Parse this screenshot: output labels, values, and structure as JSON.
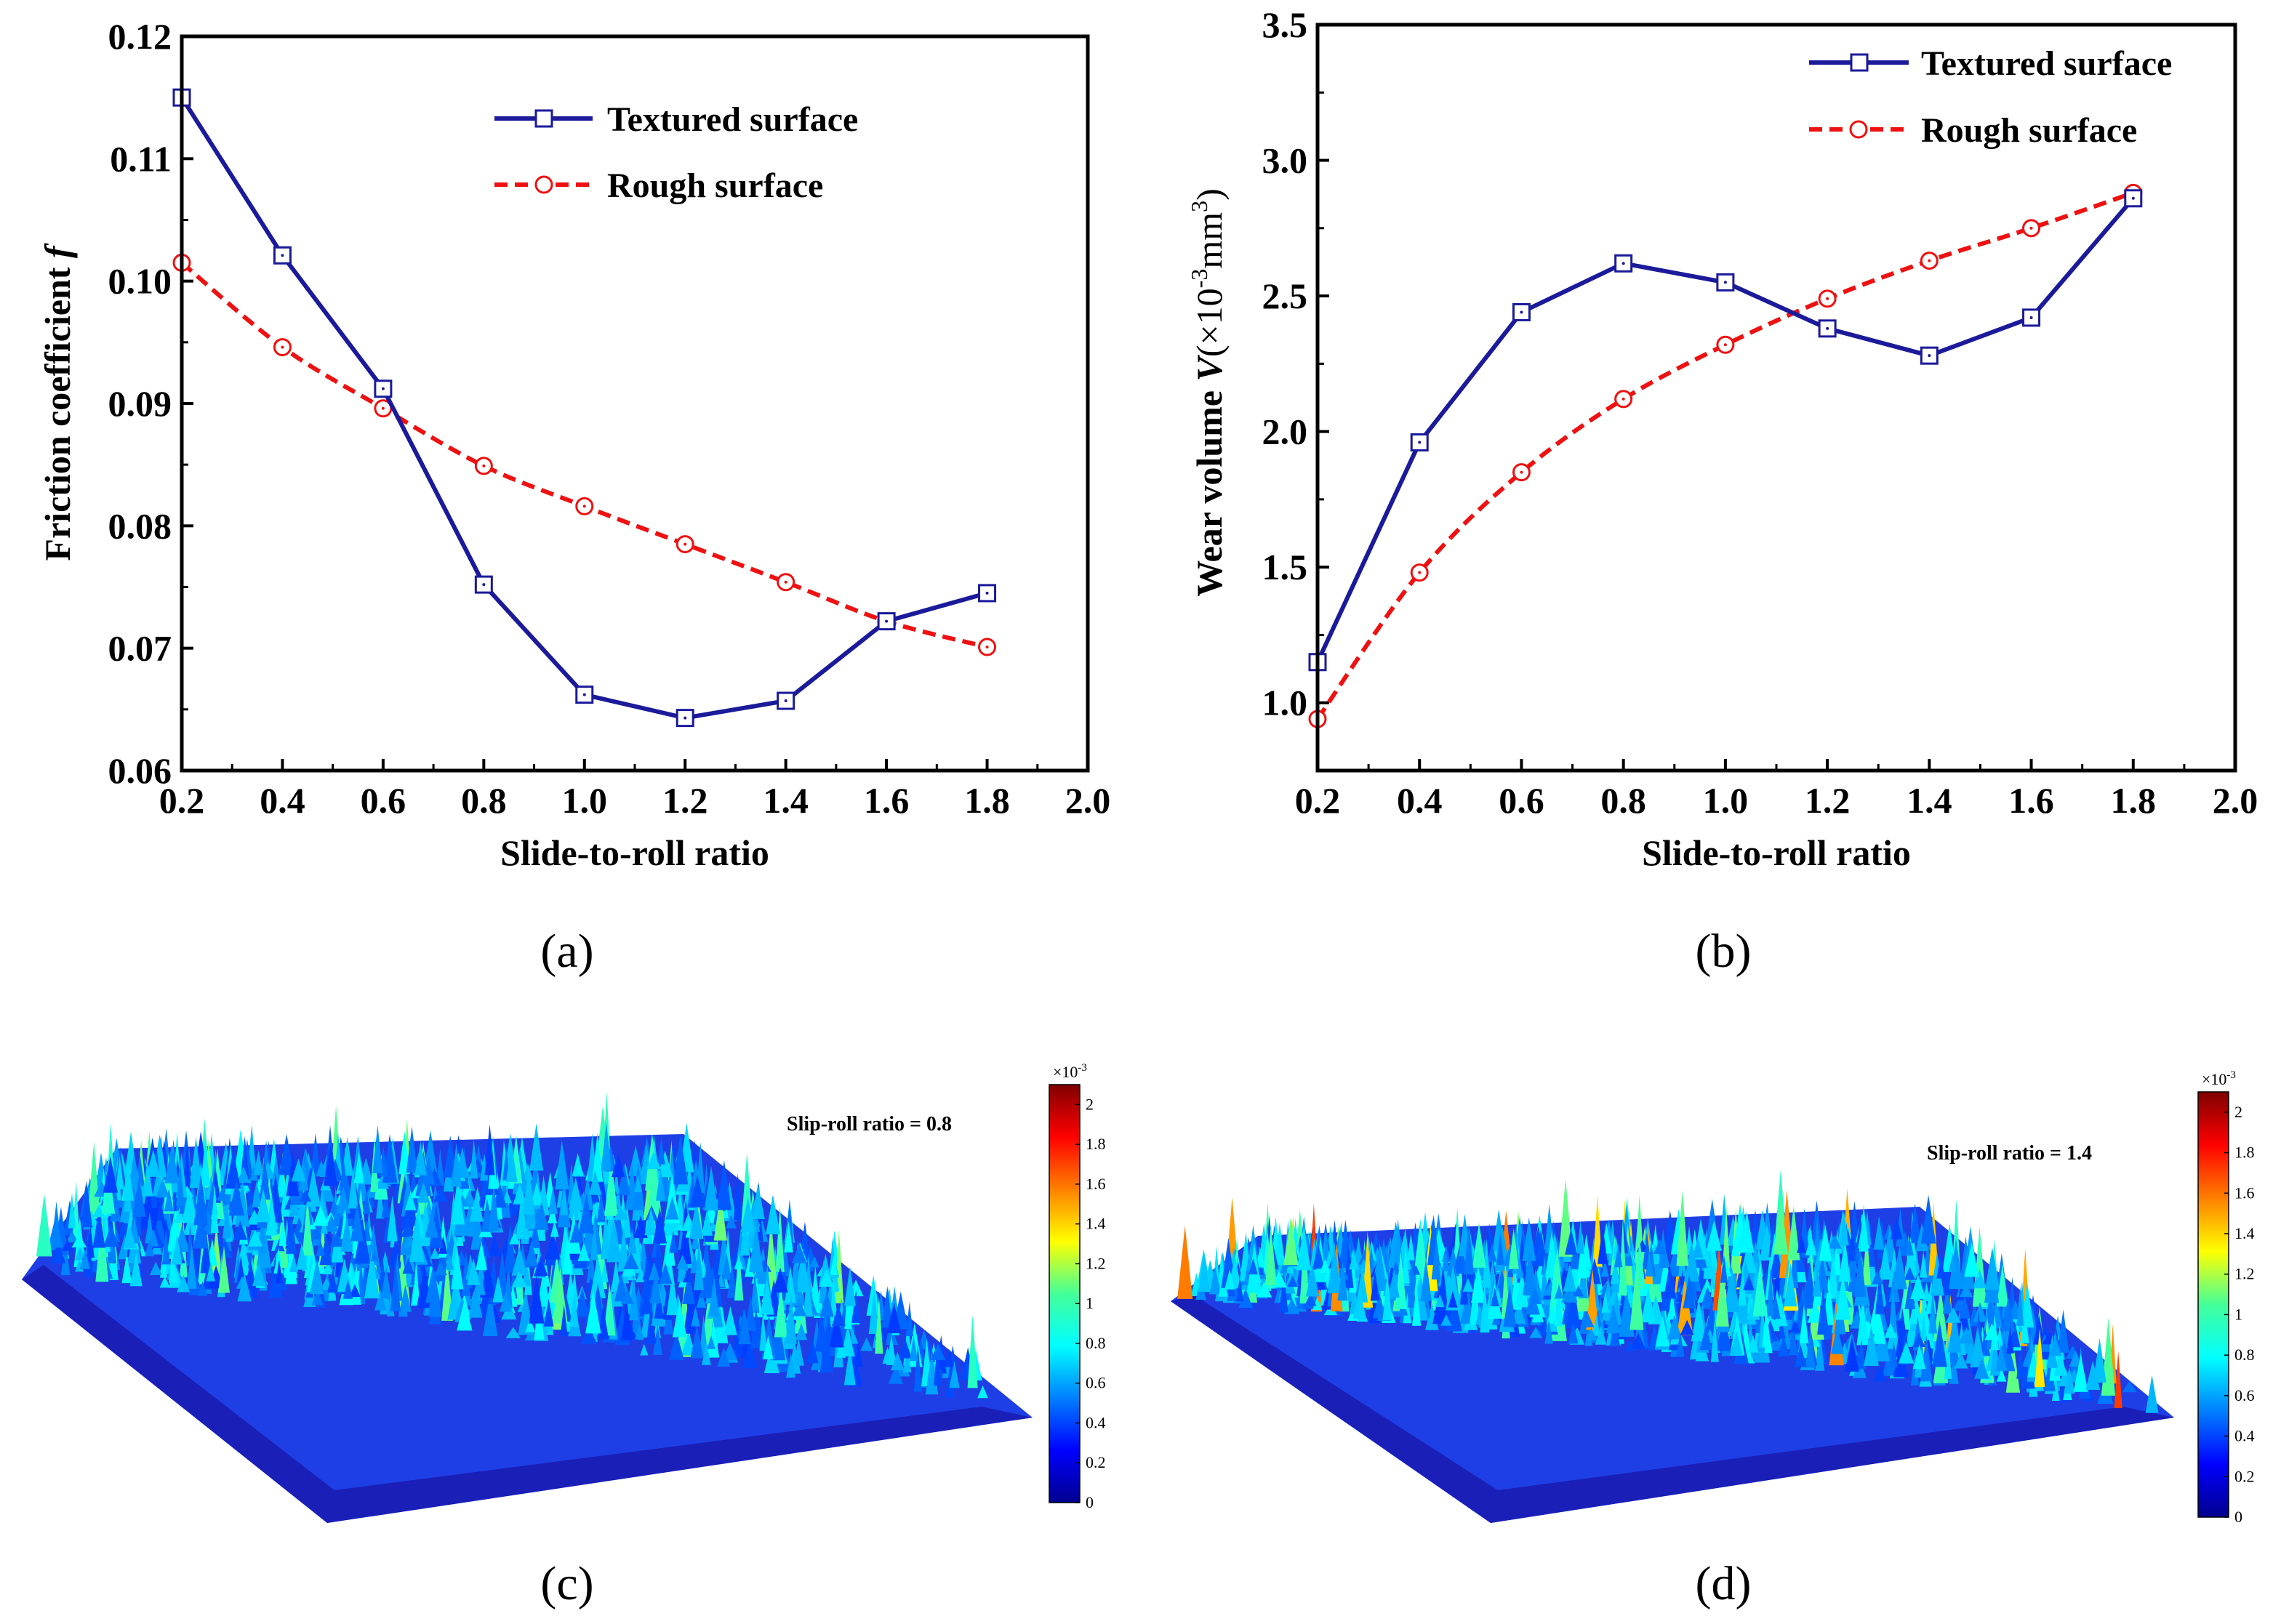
{
  "figure": {
    "captions": [
      "(a)",
      "(b)",
      "(c)",
      "(d)"
    ]
  },
  "chart_data": [
    {
      "type": "line",
      "panel": "a",
      "xlabel": "Slide-to-roll ratio",
      "ylabel": "Friction coefficient f",
      "ylabel_main": "Friction coefficient ",
      "ylabel_symbol": "f",
      "xlim": [
        0.2,
        2.0
      ],
      "ylim": [
        0.06,
        0.12
      ],
      "xticks": [
        "0.2",
        "0.4",
        "0.6",
        "0.8",
        "1.0",
        "1.2",
        "1.4",
        "1.6",
        "1.8",
        "2.0"
      ],
      "yticks": [
        "0.06",
        "0.07",
        "0.08",
        "0.09",
        "0.10",
        "0.11",
        "0.12"
      ],
      "legend_position": "top-right",
      "x": [
        0.2,
        0.4,
        0.6,
        0.8,
        1.0,
        1.2,
        1.4,
        1.6,
        1.8
      ],
      "series": [
        {
          "name": "Textured surface",
          "color": "#1a1a9a",
          "marker": "square",
          "line": "solid",
          "values": [
            0.115,
            0.1021,
            0.0912,
            0.0752,
            0.0662,
            0.0643,
            0.0657,
            0.0722,
            0.0745
          ]
        },
        {
          "name": "Rough surface",
          "color": "#ee1111",
          "marker": "circle",
          "line": "dashed",
          "values": [
            0.1015,
            0.0946,
            0.0896,
            0.0849,
            0.0816,
            0.0785,
            0.0754,
            0.0722,
            0.0701
          ]
        }
      ]
    },
    {
      "type": "line",
      "panel": "b",
      "xlabel": "Slide-to-roll ratio",
      "ylabel": "Wear volume V(×10-3mm3)",
      "ylabel_main": "Wear volume ",
      "ylabel_symbol": "V",
      "ylabel_unit_a": "(×10",
      "ylabel_unit_exp1": "-3",
      "ylabel_unit_b": "mm",
      "ylabel_unit_exp2": "3",
      "ylabel_unit_c": ")",
      "xlim": [
        0.2,
        2.0
      ],
      "ylim": [
        0.75,
        3.5
      ],
      "xticks": [
        "0.2",
        "0.4",
        "0.6",
        "0.8",
        "1.0",
        "1.2",
        "1.4",
        "1.6",
        "1.8",
        "2.0"
      ],
      "yticks": [
        "1.0",
        "1.5",
        "2.0",
        "2.5",
        "3.0",
        "3.5"
      ],
      "legend_position": "top-right",
      "x": [
        0.2,
        0.4,
        0.6,
        0.8,
        1.0,
        1.2,
        1.4,
        1.6,
        1.8
      ],
      "series": [
        {
          "name": "Textured surface",
          "color": "#1a1a9a",
          "marker": "square",
          "line": "solid",
          "values": [
            1.15,
            1.96,
            2.44,
            2.62,
            2.55,
            2.38,
            2.28,
            2.42,
            2.86
          ]
        },
        {
          "name": "Rough surface",
          "color": "#ee1111",
          "marker": "circle",
          "line": "dashed",
          "values": [
            0.94,
            1.48,
            1.85,
            2.12,
            2.32,
            2.49,
            2.63,
            2.75,
            2.88
          ]
        }
      ]
    },
    {
      "type": "heatmap",
      "panel": "c",
      "render": "3d surface",
      "annotation": "Slip-roll ratio = 0.8",
      "colorbar_exponent_base": "×10",
      "colorbar_exponent": "-3",
      "colorbar_ticks": [
        "0",
        "0.2",
        "0.4",
        "0.6",
        "0.8",
        "1",
        "1.2",
        "1.4",
        "1.6",
        "1.8",
        "2"
      ],
      "colorbar_range": [
        0,
        2.1
      ]
    },
    {
      "type": "heatmap",
      "panel": "d",
      "render": "3d surface",
      "annotation": "Slip-roll ratio = 1.4",
      "colorbar_exponent_base": "×10",
      "colorbar_exponent": "-3",
      "colorbar_ticks": [
        "0",
        "0.2",
        "0.4",
        "0.6",
        "0.8",
        "1",
        "1.2",
        "1.4",
        "1.6",
        "1.8",
        "2"
      ],
      "colorbar_range": [
        0,
        2.1
      ]
    }
  ]
}
